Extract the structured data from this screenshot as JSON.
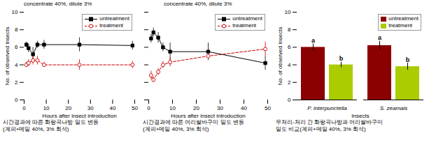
{
  "chart_data": [
    {
      "type": "line",
      "title": "concentrate 40%, dilute 3%",
      "xlabel": "Hours after insect introduction",
      "ylabel": "No. of observed Insects",
      "caption": [
        "시간경과에 따른 화랑곡나방 밀도 변동",
        "(계피+메밀 40%, 3% 회석)"
      ],
      "x": [
        1,
        2,
        4,
        6,
        9,
        25,
        49
      ],
      "xlim": [
        0,
        50
      ],
      "xticks": [
        0,
        10,
        20,
        30,
        40,
        50
      ],
      "ylim": [
        0,
        10
      ],
      "yticks": [
        0,
        2,
        4,
        6,
        8,
        10
      ],
      "legend": "upper right",
      "series": [
        {
          "name": "untreatment",
          "color": "#000000",
          "marker": "square",
          "line_style": "solid",
          "values": [
            6.3,
            5.9,
            5.2,
            6.3,
            6.3,
            6.3,
            6.2
          ],
          "errors": [
            0.3,
            0.5,
            0.8,
            0.4,
            0.5,
            0.8,
            0.5
          ]
        },
        {
          "name": "treatment",
          "color": "#CC0000",
          "marker": "circle",
          "line_style": "dashed",
          "values": [
            4.0,
            4.2,
            4.5,
            4.5,
            4.0,
            4.0,
            4.0
          ],
          "errors": [
            0.3,
            0.4,
            0.5,
            0.5,
            0.3,
            0.6,
            0.4
          ]
        }
      ]
    },
    {
      "type": "line",
      "title": "concentrate 40%, dilute 3%",
      "xlabel": "Hours after insect introduction",
      "caption": [
        "시간경과에 따른 어리쌀바구미 밀도 변동",
        "(계피+메밀 40%, 3% 회석)"
      ],
      "x": [
        1,
        2,
        4,
        6,
        9,
        25,
        49
      ],
      "xlim": [
        0,
        50
      ],
      "xticks": [
        0,
        10,
        20,
        30,
        40,
        50
      ],
      "ylim": [
        0,
        10
      ],
      "yticks": [
        0,
        2,
        4,
        6,
        8,
        10
      ],
      "tick_labels": "x",
      "legend": "upper right",
      "series": [
        {
          "name": "untreatment",
          "color": "#000000",
          "marker": "square",
          "line_style": "solid",
          "values": [
            7.0,
            7.7,
            7.1,
            6.0,
            5.5,
            5.5,
            4.2
          ],
          "errors": [
            0.5,
            0.5,
            0.6,
            0.5,
            1.0,
            1.0,
            0.8
          ]
        },
        {
          "name": "treatment",
          "color": "#CC0000",
          "marker": "circle",
          "line_style": "dashed",
          "values": [
            2.8,
            2.3,
            3.2,
            4.0,
            4.3,
            5.0,
            5.8
          ],
          "errors": [
            0.5,
            0.3,
            0.4,
            0.4,
            0.5,
            0.4,
            0.8
          ]
        }
      ]
    },
    {
      "type": "bar",
      "xlabel": "Insects",
      "ylabel": "No. of observed Insects",
      "caption": [
        "무처리-처리 간 화랑곡나방과 어리쌀바구미",
        "밀도 비교(계피+메밀 40%, 3% 회석)"
      ],
      "categories": [
        "P. interpunctella",
        "S. zeamais"
      ],
      "ylim": [
        0,
        10
      ],
      "yticks": [
        0,
        2,
        4,
        6,
        8,
        10
      ],
      "legend": "upper right",
      "series": [
        {
          "name": "untreatment",
          "color": "#8B0000",
          "values": [
            6.0,
            6.2
          ],
          "errors": [
            0.4,
            0.5
          ],
          "annotations": [
            "a",
            "a"
          ]
        },
        {
          "name": "treatment",
          "color": "#AACC00",
          "values": [
            4.0,
            3.8
          ],
          "errors": [
            0.3,
            0.4
          ],
          "annotations": [
            "b",
            "b"
          ]
        }
      ]
    }
  ]
}
